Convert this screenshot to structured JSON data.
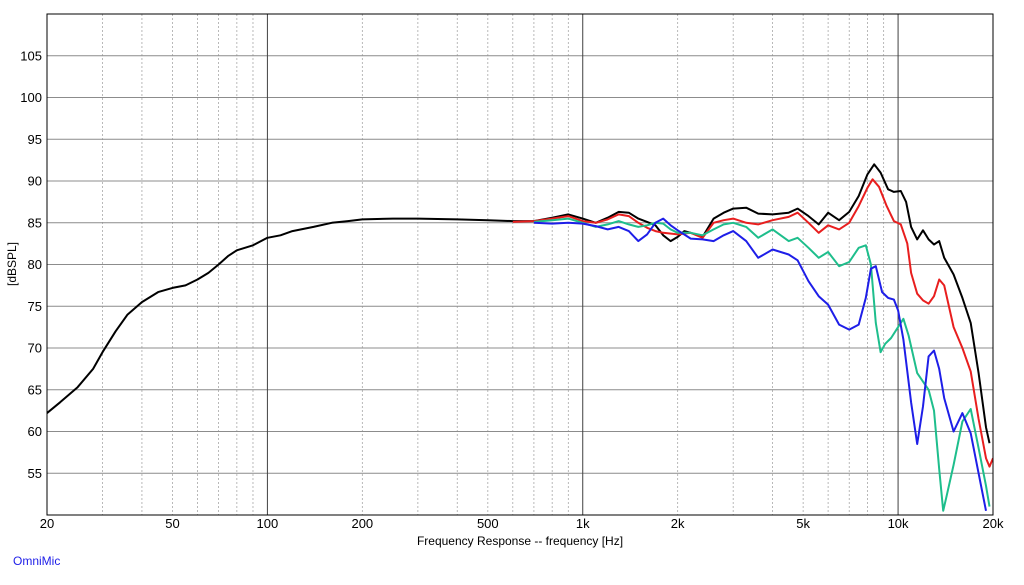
{
  "brand_label": "OmniMic",
  "chart_data": {
    "type": "line",
    "xlabel": "Frequency Response -- frequency [Hz]",
    "ylabel": "[dBSPL]",
    "x_scale": "log",
    "xlim": [
      20,
      20000
    ],
    "ylim": [
      50,
      110
    ],
    "x_ticks": [
      {
        "value": 20,
        "label": "20"
      },
      {
        "value": 50,
        "label": "50"
      },
      {
        "value": 100,
        "label": "100"
      },
      {
        "value": 200,
        "label": "200"
      },
      {
        "value": 500,
        "label": "500"
      },
      {
        "value": 1000,
        "label": "1k"
      },
      {
        "value": 2000,
        "label": "2k"
      },
      {
        "value": 5000,
        "label": "5k"
      },
      {
        "value": 10000,
        "label": "10k"
      },
      {
        "value": 20000,
        "label": "20k"
      }
    ],
    "y_ticks": [
      55,
      60,
      65,
      70,
      75,
      80,
      85,
      90,
      95,
      100,
      105
    ],
    "grid": true,
    "series": [
      {
        "color": "#000000",
        "points": [
          [
            20,
            62.2
          ],
          [
            22,
            63.5
          ],
          [
            25,
            65.3
          ],
          [
            28,
            67.5
          ],
          [
            30,
            69.5
          ],
          [
            33,
            72
          ],
          [
            36,
            74
          ],
          [
            40,
            75.5
          ],
          [
            45,
            76.7
          ],
          [
            50,
            77.2
          ],
          [
            55,
            77.5
          ],
          [
            60,
            78.2
          ],
          [
            65,
            79
          ],
          [
            70,
            80
          ],
          [
            75,
            81
          ],
          [
            80,
            81.7
          ],
          [
            90,
            82.3
          ],
          [
            100,
            83.2
          ],
          [
            110,
            83.5
          ],
          [
            120,
            84
          ],
          [
            140,
            84.5
          ],
          [
            160,
            85
          ],
          [
            180,
            85.2
          ],
          [
            200,
            85.4
          ],
          [
            250,
            85.5
          ],
          [
            300,
            85.5
          ],
          [
            400,
            85.4
          ],
          [
            500,
            85.3
          ],
          [
            600,
            85.2
          ],
          [
            700,
            85.2
          ],
          [
            800,
            85.6
          ],
          [
            900,
            86
          ],
          [
            1000,
            85.5
          ],
          [
            1100,
            85
          ],
          [
            1200,
            85.6
          ],
          [
            1300,
            86.3
          ],
          [
            1400,
            86.2
          ],
          [
            1500,
            85.5
          ],
          [
            1600,
            85.1
          ],
          [
            1700,
            84.7
          ],
          [
            1800,
            83.5
          ],
          [
            1900,
            82.8
          ],
          [
            2000,
            83.3
          ],
          [
            2100,
            84
          ],
          [
            2200,
            83.8
          ],
          [
            2400,
            83.3
          ],
          [
            2600,
            85.5
          ],
          [
            2800,
            86.2
          ],
          [
            3000,
            86.7
          ],
          [
            3300,
            86.8
          ],
          [
            3600,
            86.1
          ],
          [
            4000,
            86
          ],
          [
            4500,
            86.2
          ],
          [
            4800,
            86.7
          ],
          [
            5200,
            85.8
          ],
          [
            5600,
            84.8
          ],
          [
            6000,
            86.2
          ],
          [
            6500,
            85.3
          ],
          [
            7000,
            86.3
          ],
          [
            7500,
            88.2
          ],
          [
            8000,
            90.8
          ],
          [
            8400,
            92
          ],
          [
            8800,
            91
          ],
          [
            9300,
            89
          ],
          [
            9700,
            88.7
          ],
          [
            10200,
            88.8
          ],
          [
            10600,
            87.5
          ],
          [
            11000,
            84.5
          ],
          [
            11500,
            83
          ],
          [
            12000,
            84.1
          ],
          [
            12500,
            83
          ],
          [
            13000,
            82.4
          ],
          [
            13500,
            82.8
          ],
          [
            14000,
            80.8
          ],
          [
            15000,
            78.8
          ],
          [
            16000,
            76
          ],
          [
            17000,
            73
          ],
          [
            18000,
            67
          ],
          [
            19000,
            60.5
          ],
          [
            19500,
            58.6
          ]
        ]
      },
      {
        "color": "#e81e1e",
        "points": [
          [
            600,
            85.1
          ],
          [
            700,
            85.2
          ],
          [
            800,
            85.5
          ],
          [
            900,
            85.8
          ],
          [
            1000,
            85.2
          ],
          [
            1100,
            85
          ],
          [
            1200,
            85.4
          ],
          [
            1300,
            86
          ],
          [
            1400,
            85.8
          ],
          [
            1500,
            85
          ],
          [
            1600,
            84.4
          ],
          [
            1700,
            84
          ],
          [
            1800,
            83.8
          ],
          [
            2000,
            83.6
          ],
          [
            2200,
            83.8
          ],
          [
            2400,
            83.2
          ],
          [
            2600,
            85
          ],
          [
            2800,
            85.3
          ],
          [
            3000,
            85.5
          ],
          [
            3300,
            85
          ],
          [
            3600,
            84.8
          ],
          [
            4000,
            85.3
          ],
          [
            4500,
            85.7
          ],
          [
            4800,
            86.2
          ],
          [
            5200,
            85
          ],
          [
            5600,
            83.8
          ],
          [
            6000,
            84.7
          ],
          [
            6500,
            84.2
          ],
          [
            7000,
            85
          ],
          [
            7500,
            87
          ],
          [
            8000,
            89.2
          ],
          [
            8300,
            90.2
          ],
          [
            8700,
            89.3
          ],
          [
            9200,
            87
          ],
          [
            9700,
            85.2
          ],
          [
            10200,
            84.8
          ],
          [
            10700,
            82.5
          ],
          [
            11000,
            79
          ],
          [
            11500,
            76.5
          ],
          [
            12000,
            75.7
          ],
          [
            12500,
            75.3
          ],
          [
            13000,
            76.2
          ],
          [
            13500,
            78.2
          ],
          [
            14000,
            77.5
          ],
          [
            15000,
            72.5
          ],
          [
            16000,
            70
          ],
          [
            17000,
            67.2
          ],
          [
            18000,
            61.5
          ],
          [
            19000,
            56.8
          ],
          [
            19500,
            55.8
          ],
          [
            20000,
            56.8
          ]
        ]
      },
      {
        "color": "#1ebe8c",
        "points": [
          [
            700,
            85.1
          ],
          [
            800,
            85.3
          ],
          [
            900,
            85.5
          ],
          [
            1000,
            85
          ],
          [
            1100,
            84.5
          ],
          [
            1200,
            84.8
          ],
          [
            1300,
            85.2
          ],
          [
            1400,
            84.8
          ],
          [
            1500,
            84.5
          ],
          [
            1600,
            84.7
          ],
          [
            1700,
            85
          ],
          [
            1800,
            84.9
          ],
          [
            1900,
            84.2
          ],
          [
            2000,
            83.8
          ],
          [
            2200,
            83.8
          ],
          [
            2400,
            83.5
          ],
          [
            2600,
            84.2
          ],
          [
            2800,
            84.8
          ],
          [
            3000,
            85
          ],
          [
            3300,
            84.5
          ],
          [
            3600,
            83.2
          ],
          [
            4000,
            84.2
          ],
          [
            4500,
            82.8
          ],
          [
            4800,
            83.2
          ],
          [
            5200,
            82
          ],
          [
            5600,
            80.8
          ],
          [
            6000,
            81.5
          ],
          [
            6500,
            79.8
          ],
          [
            7000,
            80.3
          ],
          [
            7500,
            82
          ],
          [
            7900,
            82.3
          ],
          [
            8200,
            80
          ],
          [
            8500,
            73
          ],
          [
            8800,
            69.5
          ],
          [
            9100,
            70.5
          ],
          [
            9500,
            71.2
          ],
          [
            10000,
            72.5
          ],
          [
            10400,
            73.5
          ],
          [
            10800,
            71.5
          ],
          [
            11500,
            67
          ],
          [
            12500,
            65
          ],
          [
            13000,
            62.5
          ],
          [
            13500,
            55.5
          ],
          [
            13900,
            50.5
          ],
          [
            14200,
            52
          ],
          [
            15000,
            56
          ],
          [
            16000,
            61.2
          ],
          [
            17000,
            62.7
          ],
          [
            18000,
            58
          ],
          [
            19000,
            53.5
          ],
          [
            19500,
            51
          ]
        ]
      },
      {
        "color": "#1e1ee8",
        "points": [
          [
            700,
            85
          ],
          [
            800,
            84.9
          ],
          [
            900,
            85
          ],
          [
            1000,
            84.9
          ],
          [
            1100,
            84.6
          ],
          [
            1200,
            84.2
          ],
          [
            1300,
            84.5
          ],
          [
            1400,
            84
          ],
          [
            1500,
            82.8
          ],
          [
            1600,
            83.6
          ],
          [
            1700,
            85
          ],
          [
            1800,
            85.5
          ],
          [
            1900,
            84.7
          ],
          [
            2000,
            84.1
          ],
          [
            2200,
            83.1
          ],
          [
            2400,
            83
          ],
          [
            2600,
            82.8
          ],
          [
            2800,
            83.5
          ],
          [
            3000,
            84
          ],
          [
            3300,
            82.8
          ],
          [
            3600,
            80.8
          ],
          [
            4000,
            81.8
          ],
          [
            4500,
            81.2
          ],
          [
            4800,
            80.5
          ],
          [
            5200,
            78
          ],
          [
            5600,
            76.2
          ],
          [
            6000,
            75.2
          ],
          [
            6500,
            72.8
          ],
          [
            7000,
            72.2
          ],
          [
            7500,
            72.8
          ],
          [
            7900,
            76
          ],
          [
            8200,
            79.5
          ],
          [
            8500,
            79.8
          ],
          [
            8900,
            76.7
          ],
          [
            9300,
            76
          ],
          [
            9700,
            75.8
          ],
          [
            10000,
            74.5
          ],
          [
            10400,
            71
          ],
          [
            11000,
            63.5
          ],
          [
            11500,
            58.5
          ],
          [
            12000,
            63
          ],
          [
            12500,
            69
          ],
          [
            13000,
            69.7
          ],
          [
            13500,
            67.5
          ],
          [
            14000,
            64
          ],
          [
            15000,
            60
          ],
          [
            16000,
            62.2
          ],
          [
            17000,
            59.8
          ],
          [
            18000,
            55
          ],
          [
            19000,
            50.5
          ]
        ]
      }
    ]
  }
}
